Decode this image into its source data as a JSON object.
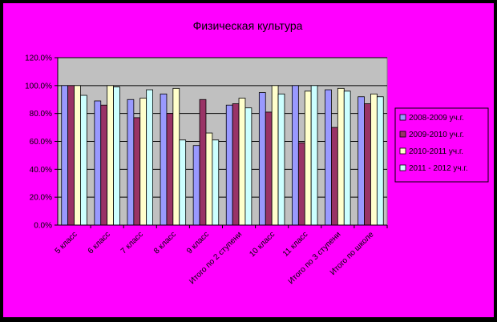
{
  "chart_data": {
    "type": "bar",
    "title": "Физическая культура",
    "xlabel": "",
    "ylabel": "",
    "ylim": [
      0,
      1.2
    ],
    "y_ticks": [
      "0.0%",
      "20.0%",
      "40.0%",
      "60.0%",
      "80.0%",
      "100.0%",
      "120.0%"
    ],
    "grid": true,
    "legend_position": "right",
    "categories": [
      "5 класс",
      "6 класс",
      "7 класс",
      "8 класс",
      "9 класс",
      "Итого по 2 ступени",
      "10 класс",
      "11 класс",
      "Итого по 3 ступени",
      "Итого по школе"
    ],
    "series": [
      {
        "name": "2008-2009 уч.г.",
        "color": "#9999ff",
        "values": [
          1.0,
          0.89,
          0.9,
          0.94,
          0.57,
          0.86,
          0.95,
          1.0,
          0.97,
          0.92
        ]
      },
      {
        "name": "2009-2010 уч.г.",
        "color": "#993366",
        "values": [
          1.0,
          0.86,
          0.77,
          0.8,
          0.9,
          0.87,
          0.81,
          0.59,
          0.7,
          0.87
        ]
      },
      {
        "name": "2010-2011 уч.г.",
        "color": "#ffffcc",
        "values": [
          1.0,
          1.0,
          0.91,
          0.98,
          0.66,
          0.91,
          1.0,
          0.96,
          0.98,
          0.94
        ]
      },
      {
        "name": "2011 - 2012 уч.г.",
        "color": "#ccffff",
        "values": [
          0.93,
          0.99,
          0.97,
          0.61,
          0.61,
          0.84,
          0.94,
          1.0,
          0.96,
          0.92
        ]
      }
    ]
  },
  "colors": {
    "outer_bg": "#ff00ff",
    "plot_bg": "#c0c0c0",
    "frame": "#000000"
  }
}
